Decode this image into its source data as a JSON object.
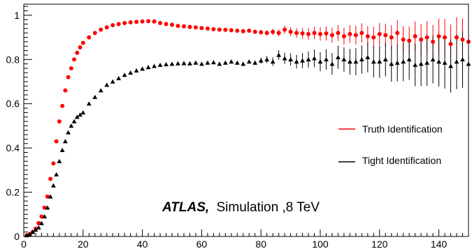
{
  "chart_data": {
    "type": "scatter",
    "title": "",
    "xlabel": "",
    "ylabel": "",
    "xlim": [
      0,
      150
    ],
    "ylim": [
      0,
      1.05
    ],
    "grid": false,
    "legend_position": "right-middle",
    "x_ticks": [
      0,
      20,
      40,
      60,
      80,
      100,
      120,
      140
    ],
    "x_tick_labels": [
      "0",
      "20",
      "40",
      "60",
      "80",
      "100",
      "120",
      "140"
    ],
    "y_ticks": [
      0,
      0.2,
      0.4,
      0.6,
      0.8,
      1
    ],
    "y_tick_labels": [
      "0",
      "0.2",
      "0.4",
      "0.6",
      "0.8",
      "1"
    ],
    "annotation": {
      "bold": "ATLAS,",
      "normal": "Simulation ,8 TeV"
    },
    "series": [
      {
        "name": "Truth Identification",
        "color": "#ff0000",
        "marker": "circle",
        "x": [
          1,
          2,
          3,
          4,
          5,
          6,
          7,
          8,
          9,
          10,
          11,
          12,
          13,
          14,
          15,
          16,
          17,
          18,
          19,
          20,
          22,
          24,
          26,
          28,
          30,
          32,
          34,
          36,
          38,
          40,
          42,
          44,
          46,
          48,
          50,
          52,
          54,
          56,
          58,
          60,
          62,
          64,
          66,
          68,
          70,
          72,
          74,
          76,
          78,
          80,
          82,
          84,
          86,
          88,
          90,
          92,
          94,
          96,
          98,
          100,
          102,
          104,
          106,
          108,
          110,
          112,
          114,
          116,
          118,
          120,
          122,
          124,
          126,
          128,
          130,
          132,
          134,
          136,
          138,
          140,
          142,
          144,
          146,
          148,
          150
        ],
        "y": [
          0.005,
          0.01,
          0.02,
          0.035,
          0.06,
          0.09,
          0.13,
          0.18,
          0.26,
          0.33,
          0.43,
          0.52,
          0.59,
          0.66,
          0.72,
          0.76,
          0.8,
          0.83,
          0.855,
          0.875,
          0.9,
          0.92,
          0.935,
          0.945,
          0.955,
          0.96,
          0.965,
          0.968,
          0.97,
          0.972,
          0.973,
          0.972,
          0.965,
          0.96,
          0.957,
          0.952,
          0.95,
          0.947,
          0.945,
          0.942,
          0.94,
          0.937,
          0.935,
          0.934,
          0.932,
          0.93,
          0.928,
          0.93,
          0.925,
          0.923,
          0.92,
          0.925,
          0.92,
          0.935,
          0.925,
          0.92,
          0.918,
          0.915,
          0.92,
          0.915,
          0.918,
          0.91,
          0.92,
          0.905,
          0.915,
          0.91,
          0.92,
          0.905,
          0.9,
          0.915,
          0.91,
          0.9,
          0.92,
          0.89,
          0.885,
          0.905,
          0.89,
          0.9,
          0.88,
          0.905,
          0.9,
          0.87,
          0.9,
          0.89,
          0.88
        ],
        "err": [
          0,
          0,
          0,
          0,
          0,
          0,
          0,
          0,
          0,
          0,
          0,
          0,
          0,
          0,
          0,
          0,
          0,
          0,
          0,
          0,
          0,
          0,
          0,
          0,
          0,
          0,
          0,
          0,
          0,
          0,
          0,
          0,
          0,
          0,
          0,
          0,
          0,
          0,
          0,
          0,
          0,
          0,
          0,
          0,
          0,
          0,
          0.005,
          0.006,
          0.008,
          0.01,
          0.012,
          0.014,
          0.016,
          0.018,
          0.02,
          0.022,
          0.024,
          0.026,
          0.028,
          0.03,
          0.032,
          0.034,
          0.036,
          0.038,
          0.04,
          0.042,
          0.044,
          0.046,
          0.048,
          0.05,
          0.052,
          0.055,
          0.058,
          0.061,
          0.064,
          0.067,
          0.07,
          0.073,
          0.076,
          0.08,
          0.084,
          0.088,
          0.092,
          0.096,
          0.1
        ]
      },
      {
        "name": "Tight Identification",
        "color": "#000000",
        "marker": "triangle",
        "x": [
          1,
          2,
          3,
          4,
          5,
          6,
          7,
          8,
          9,
          10,
          11,
          12,
          13,
          14,
          15,
          16,
          17,
          18,
          19,
          20,
          22,
          24,
          26,
          28,
          30,
          32,
          34,
          36,
          38,
          40,
          42,
          44,
          46,
          48,
          50,
          52,
          54,
          56,
          58,
          60,
          62,
          64,
          66,
          68,
          70,
          72,
          74,
          76,
          78,
          80,
          82,
          84,
          86,
          88,
          90,
          92,
          94,
          96,
          98,
          100,
          102,
          104,
          106,
          108,
          110,
          112,
          114,
          116,
          118,
          120,
          122,
          124,
          126,
          128,
          130,
          132,
          134,
          136,
          138,
          140,
          142,
          144,
          146,
          148,
          150
        ],
        "y": [
          0.005,
          0.01,
          0.02,
          0.03,
          0.04,
          0.06,
          0.09,
          0.13,
          0.18,
          0.23,
          0.28,
          0.34,
          0.39,
          0.43,
          0.47,
          0.5,
          0.52,
          0.54,
          0.55,
          0.56,
          0.6,
          0.63,
          0.66,
          0.685,
          0.7,
          0.715,
          0.73,
          0.74,
          0.75,
          0.758,
          0.765,
          0.77,
          0.775,
          0.778,
          0.78,
          0.782,
          0.783,
          0.782,
          0.785,
          0.78,
          0.785,
          0.787,
          0.78,
          0.785,
          0.79,
          0.785,
          0.78,
          0.79,
          0.785,
          0.795,
          0.8,
          0.79,
          0.82,
          0.805,
          0.8,
          0.79,
          0.795,
          0.8,
          0.805,
          0.79,
          0.8,
          0.78,
          0.81,
          0.8,
          0.79,
          0.79,
          0.8,
          0.81,
          0.79,
          0.79,
          0.8,
          0.78,
          0.785,
          0.79,
          0.8,
          0.775,
          0.78,
          0.785,
          0.8,
          0.79,
          0.785,
          0.77,
          0.79,
          0.8,
          0.78
        ],
        "err": [
          0,
          0,
          0,
          0,
          0,
          0,
          0,
          0,
          0,
          0,
          0,
          0,
          0,
          0,
          0,
          0,
          0,
          0,
          0,
          0,
          0,
          0,
          0,
          0,
          0,
          0,
          0,
          0,
          0,
          0,
          0,
          0,
          0,
          0,
          0,
          0,
          0,
          0,
          0,
          0,
          0,
          0,
          0,
          0,
          0,
          0,
          0.006,
          0.008,
          0.01,
          0.013,
          0.016,
          0.019,
          0.022,
          0.025,
          0.028,
          0.031,
          0.034,
          0.037,
          0.04,
          0.043,
          0.046,
          0.049,
          0.052,
          0.055,
          0.058,
          0.061,
          0.064,
          0.067,
          0.07,
          0.073,
          0.076,
          0.08,
          0.084,
          0.088,
          0.092,
          0.096,
          0.1,
          0.104,
          0.108,
          0.112,
          0.116,
          0.12,
          0.124,
          0.128,
          0.132
        ]
      }
    ]
  }
}
